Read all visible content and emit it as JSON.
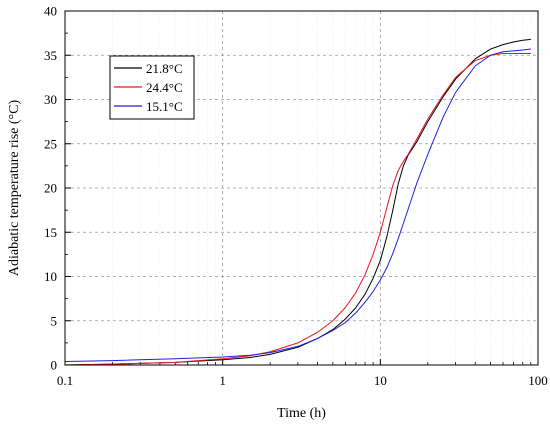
{
  "chart_data": {
    "type": "line",
    "title": "",
    "xlabel": "Time (h)",
    "ylabel": "Adiabatic temperature rise (°C)",
    "xscale": "log",
    "xlim": [
      0.1,
      100
    ],
    "ylim": [
      0,
      40
    ],
    "xticks": [
      0.1,
      1,
      10,
      100
    ],
    "xtick_labels": [
      "0.1",
      "1",
      "10",
      "100"
    ],
    "yticks": [
      0,
      5,
      10,
      15,
      20,
      25,
      30,
      35,
      40
    ],
    "ytick_labels": [
      "0",
      "5",
      "10",
      "15",
      "20",
      "25",
      "30",
      "35",
      "40"
    ],
    "grid": true,
    "legend_position": "top-left",
    "series": [
      {
        "name": "21.8°C",
        "color": "#000000",
        "x": [
          0.1,
          0.2,
          0.5,
          1,
          1.5,
          2,
          3,
          4,
          5,
          6,
          7,
          8,
          9,
          10,
          11,
          12,
          13,
          14,
          15,
          17,
          20,
          25,
          30,
          40,
          50,
          60,
          70,
          80,
          90
        ],
        "y": [
          0,
          0.1,
          0.3,
          0.6,
          0.85,
          1.2,
          2.0,
          3.0,
          4.0,
          5.2,
          6.5,
          8.0,
          9.8,
          11.8,
          14.5,
          17.5,
          20.5,
          22.5,
          23.7,
          25.2,
          27.5,
          30.3,
          32.3,
          34.6,
          35.7,
          36.2,
          36.5,
          36.7,
          36.8
        ]
      },
      {
        "name": "24.4°C",
        "color": "#e8181a",
        "x": [
          0.1,
          0.2,
          0.5,
          1,
          1.5,
          2,
          3,
          4,
          5,
          6,
          7,
          8,
          9,
          10,
          11,
          12,
          13,
          14,
          15,
          17,
          20,
          25,
          30,
          40,
          50,
          60,
          70,
          80,
          90
        ],
        "y": [
          0,
          0.1,
          0.3,
          0.7,
          1.05,
          1.5,
          2.5,
          3.7,
          5.0,
          6.5,
          8.2,
          10.2,
          12.5,
          15.0,
          17.8,
          20.3,
          22.0,
          23.0,
          23.8,
          25.5,
          27.8,
          30.5,
          32.5,
          34.4,
          35.0,
          35.2,
          35.2,
          35.2,
          35.2
        ]
      },
      {
        "name": "15.1°C",
        "color": "#1f1fe6",
        "x": [
          0.1,
          0.2,
          0.5,
          1,
          1.5,
          2,
          3,
          4,
          5,
          6,
          7,
          8,
          9,
          10,
          11,
          12,
          13,
          14,
          15,
          17,
          20,
          25,
          30,
          40,
          50,
          60,
          70,
          80,
          90
        ],
        "y": [
          0.4,
          0.5,
          0.7,
          0.9,
          1.1,
          1.4,
          2.1,
          3.0,
          3.9,
          4.8,
          5.9,
          7.1,
          8.3,
          9.6,
          11.0,
          12.6,
          14.3,
          16.0,
          17.6,
          20.5,
          23.8,
          28.0,
          30.8,
          33.8,
          35.0,
          35.4,
          35.5,
          35.6,
          35.7
        ]
      }
    ]
  }
}
